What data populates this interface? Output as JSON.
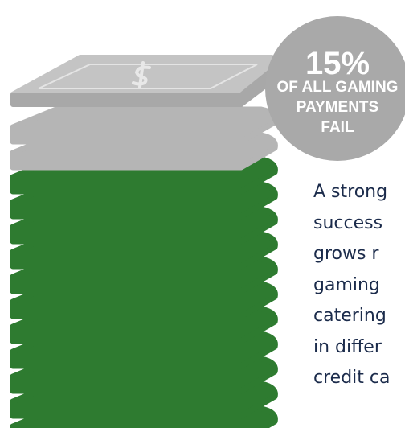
{
  "badge": {
    "value": "15%",
    "lines": [
      "OF ALL GAMING",
      "PAYMENTS",
      "FAIL"
    ]
  },
  "body": {
    "lines": [
      "A strong",
      "success",
      "grows r",
      "gaming",
      "catering",
      "in differ",
      "credit ca"
    ]
  }
}
